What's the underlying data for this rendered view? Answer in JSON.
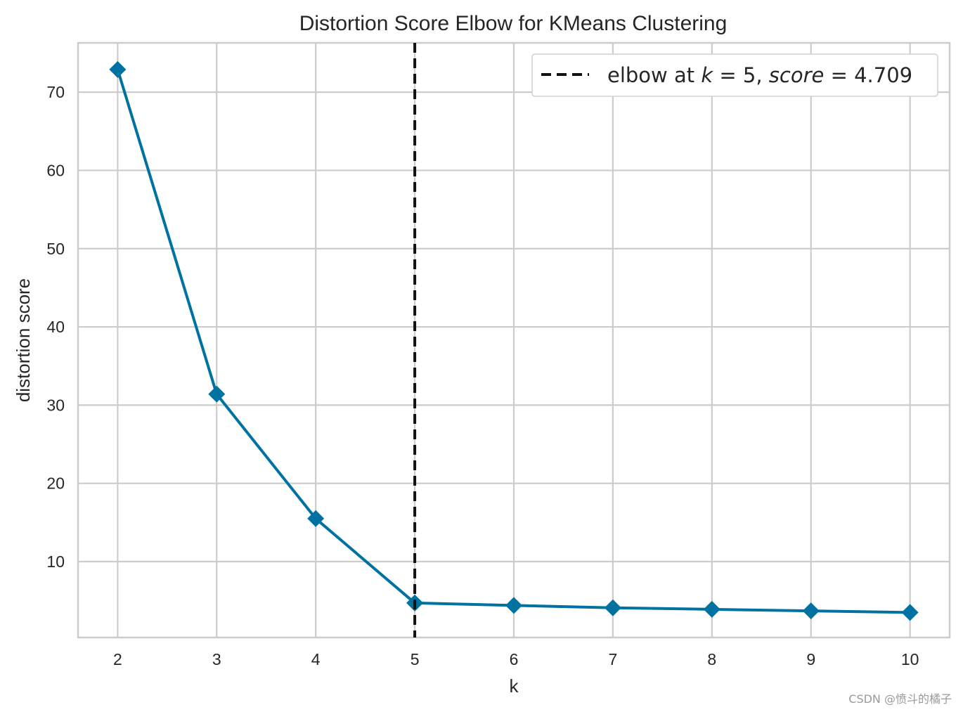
{
  "chart_data": {
    "type": "line",
    "title": "Distortion Score Elbow for KMeans Clustering",
    "xlabel": "k",
    "ylabel": "distortion score",
    "x": [
      2,
      3,
      4,
      5,
      6,
      7,
      8,
      9,
      10
    ],
    "xlim": [
      1.6,
      10.4
    ],
    "ylim": [
      0.3,
      76.3
    ],
    "xticks": [
      2,
      3,
      4,
      5,
      6,
      7,
      8,
      9,
      10
    ],
    "yticks": [
      10,
      20,
      30,
      40,
      50,
      60,
      70
    ],
    "grid": true,
    "series": [
      {
        "values": [
          72.9,
          31.4,
          15.5,
          4.709,
          4.4,
          4.1,
          3.9,
          3.7,
          3.5
        ],
        "color": "#0072a1",
        "marker": "diamond"
      }
    ],
    "elbow": {
      "k": 5,
      "score": 4.709,
      "color": "#111111",
      "style": "dashed"
    },
    "legend": {
      "placement": "top-right",
      "prefix": "elbow at ",
      "k_symbol": "k",
      "k_value": "5",
      "score_symbol": "score",
      "score_value": "4.709"
    }
  },
  "watermark": "CSDN @愤斗的橘子"
}
